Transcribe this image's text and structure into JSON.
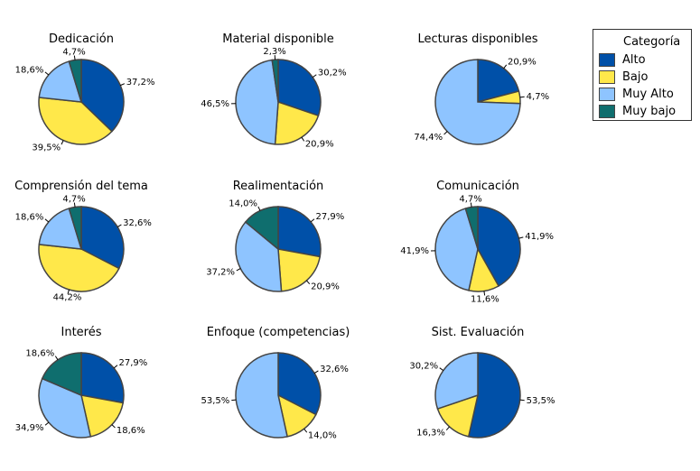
{
  "chart_data": {
    "type": "pie",
    "categories": [
      "Alto",
      "Bajo",
      "Muy Alto",
      "Muy bajo"
    ],
    "colors": [
      "#0050a8",
      "#ffe84a",
      "#8ec4ff",
      "#0f6e6e"
    ],
    "legend": {
      "title": "Categoría",
      "placement": "top-right"
    },
    "charts": [
      {
        "title": "Dedicación",
        "values": [
          37.2,
          39.5,
          18.6,
          4.7
        ],
        "labels": [
          "37,2%",
          "39,5%",
          "18,6%",
          "4,7%"
        ]
      },
      {
        "title": "Material disponible",
        "values": [
          30.2,
          20.9,
          46.5,
          2.3
        ],
        "labels": [
          "30,2%",
          "20,9%",
          "46,5%",
          "2,3%"
        ]
      },
      {
        "title": "Lecturas disponibles",
        "values": [
          20.9,
          4.7,
          74.4,
          0
        ],
        "labels": [
          "20,9%",
          "4,7%",
          "74,4%",
          ""
        ]
      },
      {
        "title": "Comprensión del tema",
        "values": [
          32.6,
          44.2,
          18.6,
          4.7
        ],
        "labels": [
          "32,6%",
          "44,2%",
          "18,6%",
          "4,7%"
        ]
      },
      {
        "title": "Realimentación",
        "values": [
          27.9,
          20.9,
          37.2,
          14.0
        ],
        "labels": [
          "27,9%",
          "20,9%",
          "37,2%",
          "14,0%"
        ]
      },
      {
        "title": "Comunicación",
        "values": [
          41.9,
          11.6,
          41.9,
          4.7
        ],
        "labels": [
          "41,9%",
          "11,6%",
          "41,9%",
          "4,7%"
        ]
      },
      {
        "title": "Interés",
        "values": [
          27.9,
          18.6,
          34.9,
          18.6
        ],
        "labels": [
          "27,9%",
          "18,6%",
          "34,9%",
          "18,6%"
        ]
      },
      {
        "title": "Enfoque (competencias)",
        "values": [
          32.6,
          14.0,
          53.5,
          0
        ],
        "labels": [
          "32,6%",
          "14,0%",
          "53,5%",
          ""
        ]
      },
      {
        "title": "Sist. Evaluación",
        "values": [
          53.5,
          16.3,
          30.2,
          0
        ],
        "labels": [
          "53,5%",
          "16,3%",
          "30,2%",
          ""
        ]
      }
    ]
  }
}
